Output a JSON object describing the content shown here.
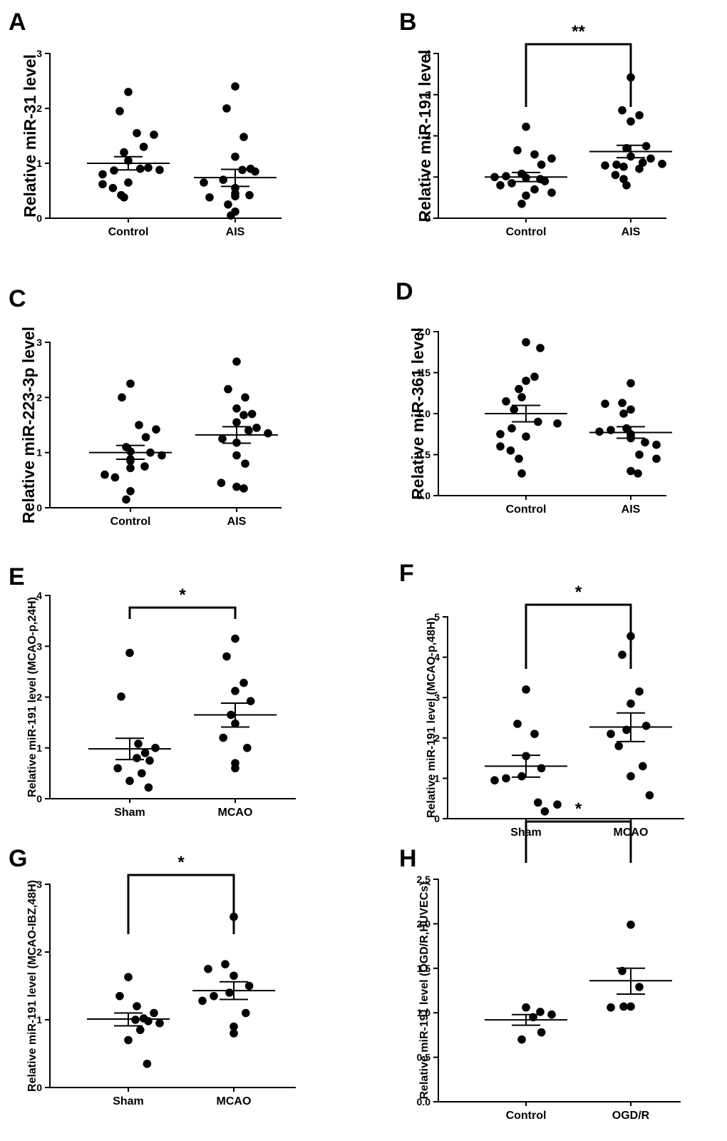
{
  "figure": {
    "title": ""
  },
  "chart_data": [
    {
      "panel": "A",
      "type": "scatter",
      "ylabel": "Relative miR-31 level",
      "ylim": [
        0,
        3
      ],
      "yticks": [
        0,
        1,
        2,
        3
      ],
      "ytick_labels": [
        "0",
        "1",
        "2",
        "3"
      ],
      "categories": [
        "Control",
        "AIS"
      ],
      "groups": [
        {
          "name": "Control",
          "mean": 1.0,
          "sem_low": 0.88,
          "sem_high": 1.12,
          "values": [
            2.3,
            1.95,
            1.55,
            1.52,
            1.3,
            1.2,
            1.05,
            0.92,
            0.9,
            0.88,
            0.87,
            0.8,
            0.65,
            0.62,
            0.55,
            0.42,
            0.38
          ]
        },
        {
          "name": "AIS",
          "mean": 0.74,
          "sem_low": 0.58,
          "sem_high": 0.89,
          "values": [
            2.4,
            2.0,
            1.48,
            1.12,
            0.9,
            0.88,
            0.85,
            0.7,
            0.65,
            0.55,
            0.45,
            0.42,
            0.4,
            0.38,
            0.25,
            0.12,
            0.05
          ]
        }
      ],
      "significance": null
    },
    {
      "panel": "B",
      "type": "scatter",
      "ylabel": "Relative miR-191 level",
      "ylim": [
        0,
        4
      ],
      "yticks": [
        0,
        1,
        2,
        3,
        4
      ],
      "ytick_labels": [
        "0",
        "1",
        "2",
        "3",
        "4"
      ],
      "categories": [
        "Control",
        "AIS"
      ],
      "groups": [
        {
          "name": "Control",
          "mean": 1.0,
          "sem_low": 0.89,
          "sem_high": 1.11,
          "values": [
            2.22,
            1.65,
            1.55,
            1.45,
            1.3,
            1.08,
            1.02,
            1.0,
            0.98,
            0.95,
            0.9,
            0.85,
            0.8,
            0.7,
            0.62,
            0.55,
            0.35
          ]
        },
        {
          "name": "AIS",
          "mean": 1.62,
          "sem_low": 1.47,
          "sem_high": 1.77,
          "values": [
            3.42,
            2.62,
            2.5,
            2.35,
            1.75,
            1.7,
            1.5,
            1.45,
            1.35,
            1.32,
            1.3,
            1.28,
            1.25,
            1.2,
            1.05,
            0.95,
            0.8
          ]
        }
      ],
      "significance": "**"
    },
    {
      "panel": "C",
      "type": "scatter",
      "ylabel": "Relative miR-223-3p level",
      "ylim": [
        0,
        3
      ],
      "yticks": [
        0,
        1,
        2,
        3
      ],
      "ytick_labels": [
        "0",
        "1",
        "2",
        "3"
      ],
      "categories": [
        "Control",
        "AIS"
      ],
      "groups": [
        {
          "name": "Control",
          "mean": 1.0,
          "sem_low": 0.88,
          "sem_high": 1.13,
          "values": [
            2.25,
            2.0,
            1.5,
            1.42,
            1.28,
            1.1,
            1.02,
            1.0,
            0.95,
            0.88,
            0.85,
            0.75,
            0.72,
            0.6,
            0.55,
            0.3,
            0.15
          ]
        },
        {
          "name": "AIS",
          "mean": 1.32,
          "sem_low": 1.17,
          "sem_high": 1.47,
          "values": [
            2.65,
            2.15,
            2.0,
            1.8,
            1.7,
            1.68,
            1.55,
            1.45,
            1.4,
            1.35,
            1.25,
            1.18,
            0.95,
            0.8,
            0.45,
            0.38,
            0.35
          ]
        }
      ],
      "significance": null
    },
    {
      "panel": "D",
      "type": "scatter",
      "ylabel": "Relative miR-361 level",
      "ylim": [
        0,
        2
      ],
      "yticks": [
        0,
        0.5,
        1,
        1.5,
        2
      ],
      "ytick_labels": [
        "0.0",
        "0.5",
        "1.0",
        "1.5",
        "2.0"
      ],
      "categories": [
        "Control",
        "AIS"
      ],
      "groups": [
        {
          "name": "Control",
          "mean": 1.0,
          "sem_low": 0.9,
          "sem_high": 1.1,
          "values": [
            1.87,
            1.8,
            1.45,
            1.4,
            1.3,
            1.2,
            1.15,
            1.05,
            0.9,
            0.88,
            0.82,
            0.75,
            0.72,
            0.6,
            0.55,
            0.45,
            0.27
          ]
        },
        {
          "name": "AIS",
          "mean": 0.77,
          "sem_low": 0.7,
          "sem_high": 0.84,
          "values": [
            1.37,
            1.13,
            1.12,
            1.05,
            1.0,
            0.82,
            0.8,
            0.78,
            0.75,
            0.72,
            0.7,
            0.65,
            0.62,
            0.5,
            0.45,
            0.3,
            0.27
          ]
        }
      ],
      "significance": null
    },
    {
      "panel": "E",
      "type": "scatter",
      "ylabel": "Relative miR-191 level (MCAO-p,24H)",
      "ylim": [
        0,
        4
      ],
      "yticks": [
        0,
        1,
        2,
        3,
        4
      ],
      "ytick_labels": [
        "0",
        "1",
        "2",
        "3",
        "4"
      ],
      "categories": [
        "Sham",
        "MCAO"
      ],
      "groups": [
        {
          "name": "Sham",
          "mean": 0.98,
          "sem_low": 0.77,
          "sem_high": 1.19,
          "values": [
            2.87,
            2.01,
            1.08,
            1.0,
            0.9,
            0.8,
            0.75,
            0.6,
            0.5,
            0.35,
            0.22
          ]
        },
        {
          "name": "MCAO",
          "mean": 1.65,
          "sem_low": 1.41,
          "sem_high": 1.88,
          "values": [
            3.15,
            2.8,
            2.28,
            2.12,
            1.92,
            1.65,
            1.48,
            1.2,
            1.0,
            0.7,
            0.6
          ]
        }
      ],
      "significance": "*"
    },
    {
      "panel": "F",
      "type": "scatter",
      "ylabel": "Relative miR-191 level (MCAO-p,48H)",
      "ylim": [
        0,
        5
      ],
      "yticks": [
        0,
        1,
        2,
        3,
        4,
        5
      ],
      "ytick_labels": [
        "0",
        "1",
        "2",
        "3",
        "4",
        "5"
      ],
      "categories": [
        "Sham",
        "MCAO"
      ],
      "groups": [
        {
          "name": "Sham",
          "mean": 1.3,
          "sem_low": 1.03,
          "sem_high": 1.57,
          "values": [
            3.2,
            2.35,
            2.1,
            1.55,
            1.25,
            1.05,
            1.0,
            0.95,
            0.4,
            0.35,
            0.18
          ]
        },
        {
          "name": "MCAO",
          "mean": 2.27,
          "sem_low": 1.91,
          "sem_high": 2.62,
          "values": [
            4.52,
            4.06,
            3.15,
            2.85,
            2.3,
            2.2,
            2.1,
            1.8,
            1.3,
            1.05,
            0.58
          ]
        }
      ],
      "significance": "*"
    },
    {
      "panel": "G",
      "type": "scatter",
      "ylabel": "Relative miR-191 level (MCAO-IBZ,48H)",
      "ylim": [
        0,
        3
      ],
      "yticks": [
        0,
        1,
        2,
        3
      ],
      "ytick_labels": [
        "0",
        "1",
        "2",
        "3"
      ],
      "categories": [
        "Sham",
        "MCAO"
      ],
      "groups": [
        {
          "name": "Sham",
          "mean": 1.01,
          "sem_low": 0.91,
          "sem_high": 1.1,
          "values": [
            1.63,
            1.35,
            1.2,
            1.1,
            1.02,
            1.0,
            0.98,
            0.95,
            0.85,
            0.7,
            0.35
          ]
        },
        {
          "name": "MCAO",
          "mean": 1.43,
          "sem_low": 1.3,
          "sem_high": 1.56,
          "values": [
            2.52,
            1.82,
            1.75,
            1.65,
            1.5,
            1.4,
            1.35,
            1.28,
            1.1,
            0.9,
            0.8
          ]
        }
      ],
      "significance": "*"
    },
    {
      "panel": "H",
      "type": "scatter",
      "ylabel": "Relative miR-191 level (OGD/R,HUVECs)",
      "ylim": [
        0,
        2.5
      ],
      "yticks": [
        0,
        0.5,
        1,
        1.5,
        2,
        2.5
      ],
      "ytick_labels": [
        "0.0",
        "0.5",
        "1.0",
        "1.5",
        "2.0",
        "2.5"
      ],
      "categories": [
        "Control",
        "OGD/R"
      ],
      "groups": [
        {
          "name": "Control",
          "mean": 0.92,
          "sem_low": 0.86,
          "sem_high": 0.98,
          "values": [
            1.06,
            1.01,
            0.98,
            0.95,
            0.78,
            0.7
          ]
        },
        {
          "name": "OGD/R",
          "mean": 1.36,
          "sem_low": 1.21,
          "sem_high": 1.5,
          "values": [
            1.99,
            1.47,
            1.29,
            1.07,
            1.07,
            1.06
          ]
        }
      ],
      "significance": "*"
    }
  ]
}
